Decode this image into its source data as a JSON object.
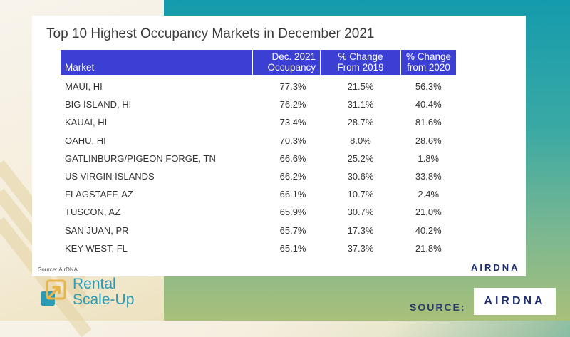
{
  "chart_data": {
    "type": "table",
    "title": "Top 10 Highest Occupancy Markets in December 2021",
    "columns": [
      {
        "line1": "",
        "line2": "Market"
      },
      {
        "line1": "Dec. 2021",
        "line2": "Occupancy"
      },
      {
        "line1": "% Change",
        "line2": "From 2019"
      },
      {
        "line1": "% Change",
        "line2": "from 2020"
      }
    ],
    "rows": [
      {
        "market": "MAUI, HI",
        "occupancy": "77.3%",
        "change_2019": "21.5%",
        "change_2020": "56.3%"
      },
      {
        "market": "BIG ISLAND, HI",
        "occupancy": "76.2%",
        "change_2019": "31.1%",
        "change_2020": "40.4%"
      },
      {
        "market": "KAUAI, HI",
        "occupancy": "73.4%",
        "change_2019": "28.7%",
        "change_2020": "81.6%"
      },
      {
        "market": "OAHU, HI",
        "occupancy": "70.3%",
        "change_2019": "8.0%",
        "change_2020": "28.6%"
      },
      {
        "market": "GATLINBURG/PIGEON FORGE, TN",
        "occupancy": "66.6%",
        "change_2019": "25.2%",
        "change_2020": "1.8%"
      },
      {
        "market": "US VIRGIN ISLANDS",
        "occupancy": "66.2%",
        "change_2019": "30.6%",
        "change_2020": "33.8%"
      },
      {
        "market": "FLAGSTAFF, AZ",
        "occupancy": "66.1%",
        "change_2019": "10.7%",
        "change_2020": "2.4%"
      },
      {
        "market": "TUSCON, AZ",
        "occupancy": "65.9%",
        "change_2019": "30.7%",
        "change_2020": "21.0%"
      },
      {
        "market": "SAN JUAN, PR",
        "occupancy": "65.7%",
        "change_2019": "17.3%",
        "change_2020": "40.2%"
      },
      {
        "market": "KEY WEST, FL",
        "occupancy": "65.1%",
        "change_2019": "37.3%",
        "change_2020": "21.8%"
      }
    ],
    "header_color": "#3b3fd3"
  },
  "footnote": "Source: AirDNA",
  "panel_logo": "AIRDNA",
  "brand": {
    "line1": "Rental",
    "line2": "Scale-Up",
    "icon": "arrow-box-icon",
    "color": "#2a9bb5"
  },
  "source": {
    "label": "SOURCE:",
    "logo": "AIRDNA"
  }
}
